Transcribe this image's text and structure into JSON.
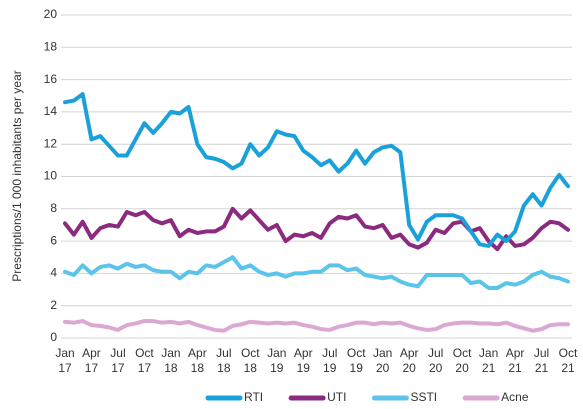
{
  "chart_data": {
    "type": "line",
    "y_label": "Prescriptions/1 000 inhabitants per year",
    "categories": [
      "Jan 17",
      null,
      null,
      "Apr 17",
      null,
      null,
      "Jul 17",
      null,
      null,
      "Oct 17",
      null,
      null,
      "Jan 18",
      null,
      null,
      "Apr 18",
      null,
      null,
      "Jul 18",
      null,
      null,
      "Oct 18",
      null,
      null,
      "Jan 19",
      null,
      null,
      "Apr 19",
      null,
      null,
      "Jul 19",
      null,
      null,
      "Oct 19",
      null,
      null,
      "Jan 20",
      null,
      null,
      "Apr 20",
      null,
      null,
      "Jul 20",
      null,
      null,
      "Oct 20",
      null,
      null,
      "Jan 21",
      null,
      null,
      "Apr 21",
      null,
      null,
      "Jul 21",
      null,
      null,
      "Oct 21"
    ],
    "series": [
      {
        "name": "RTI",
        "color": "#1ba1d9",
        "values": [
          14.6,
          14.7,
          15.1,
          12.3,
          12.5,
          11.9,
          11.3,
          11.3,
          12.3,
          13.3,
          12.7,
          13.3,
          14.0,
          13.9,
          14.3,
          12.0,
          11.2,
          11.1,
          10.9,
          10.5,
          10.8,
          12.0,
          11.3,
          11.8,
          12.8,
          12.6,
          12.5,
          11.6,
          11.2,
          10.7,
          11.0,
          10.3,
          10.8,
          11.6,
          10.8,
          11.5,
          11.8,
          11.9,
          11.5,
          7.0,
          6.1,
          7.2,
          7.6,
          7.6,
          7.6,
          7.4,
          6.6,
          5.8,
          5.7,
          6.4,
          6.0,
          6.6,
          8.2,
          8.9,
          8.2,
          9.3,
          10.1,
          9.4
        ]
      },
      {
        "name": "UTI",
        "color": "#8b2a7e",
        "values": [
          7.1,
          6.4,
          7.2,
          6.2,
          6.8,
          7.0,
          6.9,
          7.8,
          7.6,
          7.8,
          7.3,
          7.1,
          7.3,
          6.3,
          6.7,
          6.5,
          6.6,
          6.6,
          6.9,
          8.0,
          7.4,
          7.9,
          7.3,
          6.7,
          7.0,
          6.0,
          6.4,
          6.3,
          6.5,
          6.2,
          7.1,
          7.5,
          7.4,
          7.6,
          6.9,
          6.8,
          7.0,
          6.2,
          6.4,
          5.8,
          5.6,
          5.9,
          6.7,
          6.5,
          7.1,
          7.2,
          6.6,
          6.8,
          6.0,
          5.5,
          6.3,
          5.7,
          5.8,
          6.2,
          6.8,
          7.2,
          7.1,
          6.7
        ]
      },
      {
        "name": "SSTI",
        "color": "#5cc4ea",
        "values": [
          4.1,
          3.9,
          4.5,
          4.0,
          4.4,
          4.5,
          4.3,
          4.6,
          4.4,
          4.5,
          4.2,
          4.1,
          4.1,
          3.7,
          4.1,
          4.0,
          4.5,
          4.4,
          4.7,
          5.0,
          4.3,
          4.5,
          4.1,
          3.9,
          4.0,
          3.8,
          4.0,
          4.0,
          4.1,
          4.1,
          4.5,
          4.5,
          4.2,
          4.3,
          3.9,
          3.8,
          3.7,
          3.8,
          3.5,
          3.3,
          3.2,
          3.9,
          3.9,
          3.9,
          3.9,
          3.9,
          3.4,
          3.5,
          3.1,
          3.1,
          3.4,
          3.3,
          3.5,
          3.9,
          4.1,
          3.8,
          3.7,
          3.5
        ]
      },
      {
        "name": "Acne",
        "color": "#dba8d1",
        "values": [
          1.0,
          0.95,
          1.05,
          0.8,
          0.75,
          0.65,
          0.5,
          0.8,
          0.9,
          1.05,
          1.05,
          0.95,
          1.0,
          0.9,
          1.0,
          0.8,
          0.65,
          0.5,
          0.45,
          0.75,
          0.85,
          1.0,
          0.95,
          0.9,
          0.95,
          0.9,
          0.95,
          0.8,
          0.7,
          0.55,
          0.5,
          0.7,
          0.8,
          0.95,
          0.95,
          0.85,
          0.95,
          0.9,
          0.95,
          0.75,
          0.6,
          0.5,
          0.55,
          0.8,
          0.9,
          0.95,
          0.95,
          0.9,
          0.9,
          0.85,
          0.95,
          0.75,
          0.6,
          0.45,
          0.55,
          0.8,
          0.85,
          0.85
        ]
      }
    ],
    "ylim": [
      0,
      20
    ],
    "yticks": [
      0,
      2,
      4,
      6,
      8,
      10,
      12,
      14,
      16,
      18,
      20
    ],
    "grid": true,
    "legend": "bottom"
  }
}
